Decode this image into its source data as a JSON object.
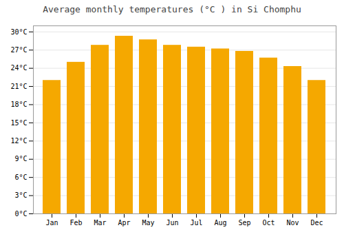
{
  "chart_data": {
    "type": "bar",
    "title": "Average monthly temperatures (°C ) in Si Chomphu",
    "categories": [
      "Jan",
      "Feb",
      "Mar",
      "Apr",
      "May",
      "Jun",
      "Jul",
      "Aug",
      "Sep",
      "Oct",
      "Nov",
      "Dec"
    ],
    "values": [
      22.0,
      25.0,
      27.8,
      29.3,
      28.7,
      27.8,
      27.5,
      27.2,
      26.8,
      25.7,
      24.3,
      22.0
    ],
    "color": "#F5A800",
    "ylim": [
      0,
      31
    ],
    "yticks": [
      {
        "value": 0,
        "label": "0°C"
      },
      {
        "value": 3,
        "label": "3°C"
      },
      {
        "value": 6,
        "label": "6°C"
      },
      {
        "value": 9,
        "label": "9°C"
      },
      {
        "value": 12,
        "label": "12°C"
      },
      {
        "value": 15,
        "label": "15°C"
      },
      {
        "value": 18,
        "label": "18°C"
      },
      {
        "value": 21,
        "label": "21°C"
      },
      {
        "value": 24,
        "label": "24°C"
      },
      {
        "value": 27,
        "label": "27°C"
      },
      {
        "value": 30,
        "label": "30°C"
      }
    ],
    "grid": true
  }
}
